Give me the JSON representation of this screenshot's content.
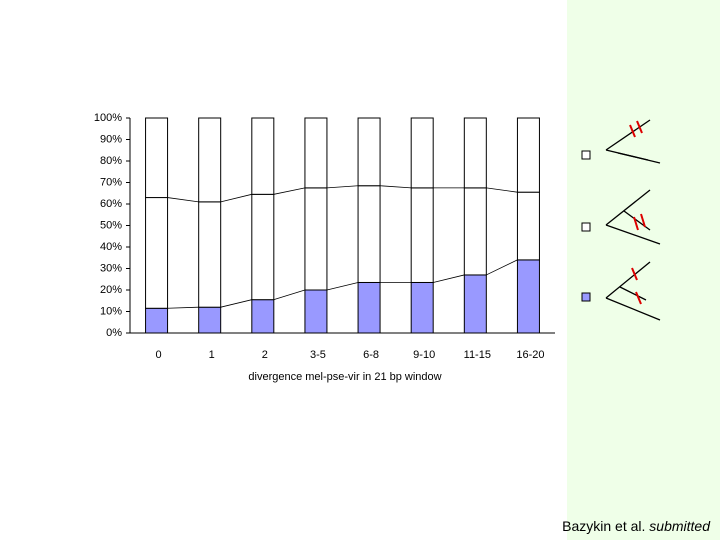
{
  "chart_data": {
    "type": "stacked_bar_100",
    "x_label": "divergence mel-pse-vir in 21 bp window",
    "categories": [
      "0",
      "1",
      "2",
      "3-5",
      "6-8",
      "9-10",
      "11-15",
      "16-20"
    ],
    "series": [
      {
        "color": "#9999ff",
        "values": [
          11.5,
          12,
          15.5,
          20,
          23.5,
          23.5,
          27,
          34
        ]
      },
      {
        "color": "#ffffff",
        "values": [
          51.5,
          49,
          49,
          47.5,
          45,
          44,
          40.5,
          31.5
        ]
      },
      {
        "color": "#ffffff",
        "values": [
          37,
          39,
          35.5,
          32.5,
          31.5,
          32.5,
          32.5,
          34.5
        ]
      }
    ],
    "ylim": [
      0,
      100
    ],
    "yticks": [
      {
        "value": 0,
        "label": "0%"
      },
      {
        "value": 10,
        "label": "10%"
      },
      {
        "value": 20,
        "label": "20%"
      },
      {
        "value": 30,
        "label": "30%"
      },
      {
        "value": 40,
        "label": "40%"
      },
      {
        "value": 50,
        "label": "50%"
      },
      {
        "value": 60,
        "label": "60%"
      },
      {
        "value": 70,
        "label": "70%"
      },
      {
        "value": 80,
        "label": "80%"
      },
      {
        "value": 90,
        "label": "90%"
      },
      {
        "value": 100,
        "label": "100%"
      }
    ],
    "grid": false
  },
  "footer": {
    "text": "Bazykin et al.",
    "emphasis": "submitted"
  }
}
